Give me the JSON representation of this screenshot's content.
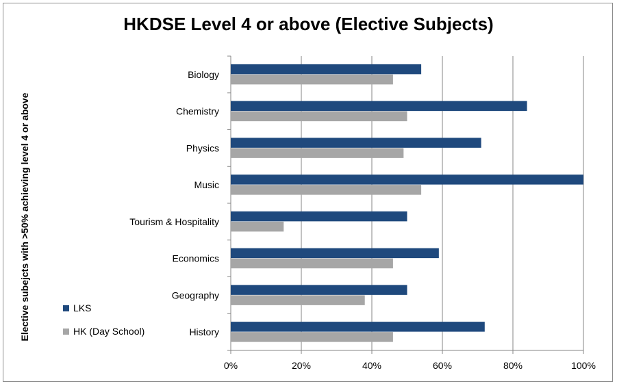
{
  "chart_data": {
    "type": "bar",
    "orientation": "horizontal",
    "title": "HKDSE Level 4 or above (Elective Subjects)",
    "xlabel": "",
    "ylabel": "Elective subejcts with >50% achieving level 4 or above",
    "categories": [
      "Biology",
      "Chemistry",
      "Physics",
      "Music",
      "Tourism & Hospitality",
      "Economics",
      "Geography",
      "History"
    ],
    "series": [
      {
        "name": "LKS",
        "color": "#1f497d",
        "values": [
          54,
          84,
          71,
          100,
          50,
          59,
          50,
          72
        ]
      },
      {
        "name": "HK (Day School)",
        "color": "#a6a6a6",
        "values": [
          46,
          50,
          49,
          54,
          15,
          46,
          38,
          46
        ]
      }
    ],
    "xlim": [
      0,
      100
    ],
    "xticks": [
      "0%",
      "20%",
      "40%",
      "60%",
      "80%",
      "100%"
    ],
    "grid": true,
    "legend": "bottom-left"
  }
}
